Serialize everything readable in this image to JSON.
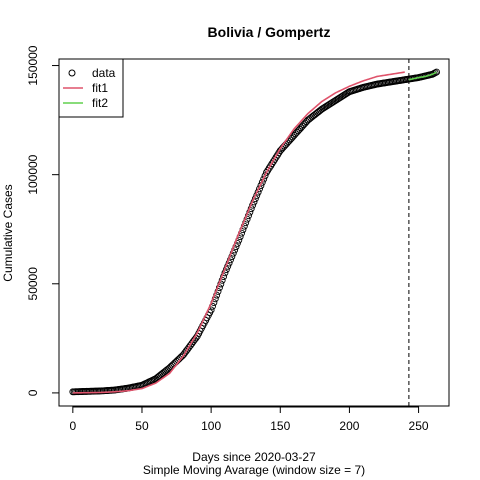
{
  "chart_data": {
    "type": "scatter",
    "title": "Bolivia / Gompertz",
    "xlabel": "Days since 2020-03-27",
    "sublabel": "Simple Moving Avarage (window size = 7)",
    "ylabel": "Cumulative Cases",
    "xlim": [
      -10,
      272
    ],
    "ylim": [
      -6000,
      153000
    ],
    "x_ticks": [
      0,
      50,
      100,
      150,
      200,
      250
    ],
    "y_ticks": [
      0,
      50000,
      100000,
      150000
    ],
    "x_tick_labels": [
      "0",
      "50",
      "100",
      "150",
      "200",
      "250"
    ],
    "y_tick_labels": [
      "0",
      "50000",
      "100000",
      "150000"
    ],
    "cutoff_x": 243,
    "legend": {
      "position": "top-left",
      "items": [
        {
          "label": "data",
          "symbol": "circle",
          "color": "#000000"
        },
        {
          "label": "fit1",
          "symbol": "line",
          "color": "#DF536B"
        },
        {
          "label": "fit2",
          "symbol": "line",
          "color": "#61D04F"
        }
      ]
    },
    "series": [
      {
        "name": "data",
        "kind": "points",
        "color": "#000000",
        "x_start": 0,
        "x_end": 263,
        "x": [
          0,
          10,
          20,
          30,
          40,
          50,
          60,
          70,
          80,
          90,
          100,
          110,
          120,
          130,
          140,
          150,
          160,
          170,
          180,
          190,
          200,
          210,
          220,
          230,
          240,
          250,
          260,
          263
        ],
        "y": [
          500,
          700,
          900,
          1300,
          2200,
          3500,
          6500,
          11500,
          17500,
          26000,
          38000,
          55000,
          70000,
          86000,
          101000,
          111000,
          118000,
          125000,
          130000,
          134000,
          138000,
          140000,
          141500,
          142500,
          143500,
          144500,
          146000,
          147000
        ]
      },
      {
        "name": "fit1",
        "kind": "line",
        "color": "#DF536B",
        "x": [
          0,
          10,
          20,
          30,
          40,
          50,
          60,
          70,
          80,
          90,
          100,
          110,
          120,
          130,
          140,
          150,
          160,
          170,
          180,
          190,
          200,
          210,
          220,
          230,
          240
        ],
        "y": [
          0,
          100,
          200,
          500,
          1000,
          2000,
          4500,
          9000,
          17000,
          27500,
          41000,
          57000,
          73000,
          88000,
          101000,
          112000,
          121000,
          128000,
          133500,
          137500,
          140500,
          143000,
          145000,
          146000,
          147000
        ]
      },
      {
        "name": "fit2",
        "kind": "line",
        "color": "#61D04F",
        "x": [
          243,
          250,
          255,
          260,
          263
        ],
        "y": [
          143500,
          144500,
          145000,
          146000,
          147000
        ]
      }
    ]
  }
}
